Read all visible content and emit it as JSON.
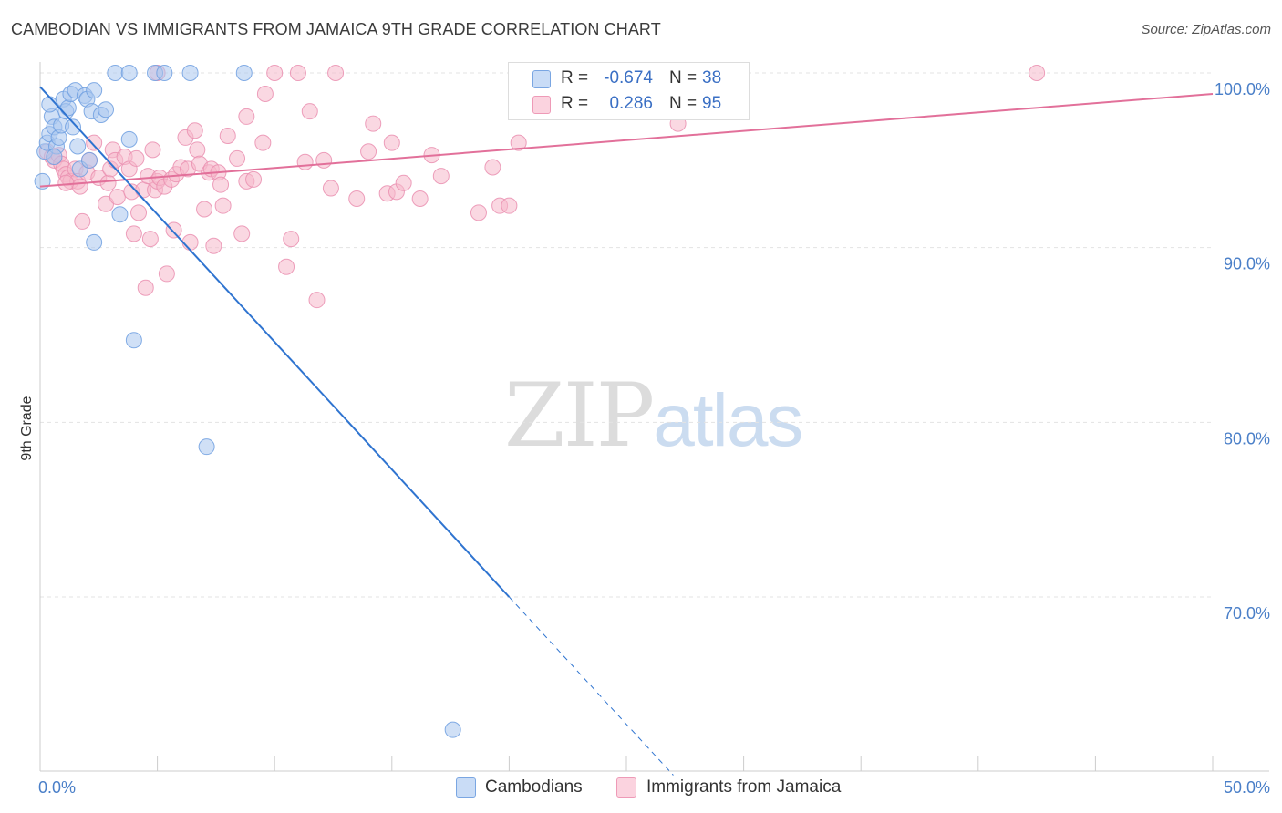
{
  "title": "CAMBODIAN VS IMMIGRANTS FROM JAMAICA 9TH GRADE CORRELATION CHART",
  "source": "Source: ZipAtlas.com",
  "watermark": {
    "zip": "ZIP",
    "atlas": "atlas"
  },
  "legend": {
    "rows": [
      {
        "r_label": "R =",
        "r_value": "-0.674",
        "n_label": "N =",
        "n_value": "38",
        "color": "#a9c7ef"
      },
      {
        "r_label": "R =",
        "r_value": "0.286",
        "n_label": "N =",
        "n_value": "95",
        "color": "#f6b8cb"
      }
    ]
  },
  "bottom_legend": [
    {
      "label": "Cambodians",
      "color": "#a9c7ef"
    },
    {
      "label": "Immigrants from Jamaica",
      "color": "#f6b8cb"
    }
  ],
  "chart_data": {
    "type": "scatter",
    "title": "CAMBODIAN VS IMMIGRANTS FROM JAMAICA 9TH GRADE CORRELATION CHART",
    "xlabel": "",
    "ylabel": "9th Grade",
    "xlim": [
      0,
      50
    ],
    "ylim": [
      60.5,
      101
    ],
    "x_tick_labels": [
      {
        "value": 0,
        "label": "0.0%"
      },
      {
        "value": 50,
        "label": "50.0%"
      }
    ],
    "y_tick_labels": [
      {
        "value": 100,
        "label": "100.0%"
      },
      {
        "value": 90,
        "label": "90.0%"
      },
      {
        "value": 80,
        "label": "80.0%"
      },
      {
        "value": 70,
        "label": "70.0%"
      }
    ],
    "grid": true,
    "legend_position": "top-center",
    "series": [
      {
        "name": "Cambodians",
        "color": "#6f9fe0",
        "fill": "#a9c7ef",
        "trend": {
          "x0": 0,
          "y0": 99.2,
          "x1": 20,
          "y1": 70.0,
          "dash_to_x": 27,
          "dash_to_y": 59.8,
          "color": "#2f74d0"
        },
        "points": [
          [
            0.1,
            93.8
          ],
          [
            0.2,
            95.5
          ],
          [
            0.3,
            96.0
          ],
          [
            0.4,
            96.5
          ],
          [
            0.5,
            97.5
          ],
          [
            0.6,
            96.9
          ],
          [
            0.7,
            95.8
          ],
          [
            0.8,
            96.3
          ],
          [
            0.9,
            97.0
          ],
          [
            1.0,
            98.5
          ],
          [
            1.1,
            97.8
          ],
          [
            1.2,
            98.0
          ],
          [
            1.3,
            98.8
          ],
          [
            1.5,
            99.0
          ],
          [
            1.6,
            95.8
          ],
          [
            1.7,
            94.5
          ],
          [
            1.9,
            98.7
          ],
          [
            2.0,
            98.5
          ],
          [
            2.1,
            95.0
          ],
          [
            2.2,
            97.8
          ],
          [
            2.3,
            90.3
          ],
          [
            2.3,
            99.0
          ],
          [
            2.6,
            97.6
          ],
          [
            2.8,
            97.9
          ],
          [
            3.2,
            100
          ],
          [
            3.4,
            91.9
          ],
          [
            3.8,
            96.2
          ],
          [
            3.8,
            100
          ],
          [
            4.0,
            84.7
          ],
          [
            4.9,
            100
          ],
          [
            5.3,
            100
          ],
          [
            6.4,
            100
          ],
          [
            7.1,
            78.6
          ],
          [
            8.7,
            100
          ],
          [
            17.6,
            62.4
          ],
          [
            0.4,
            98.2
          ],
          [
            1.4,
            96.9
          ],
          [
            0.6,
            95.2
          ]
        ]
      },
      {
        "name": "Immigrants from Jamaica",
        "color": "#ea8fb0",
        "fill": "#f6b8cb",
        "trend": {
          "x0": 0,
          "y0": 93.5,
          "x1": 50,
          "y1": 98.8,
          "color": "#e2709a"
        },
        "points": [
          [
            0.3,
            95.5
          ],
          [
            0.5,
            95.2
          ],
          [
            0.6,
            95.0
          ],
          [
            0.8,
            95.3
          ],
          [
            0.9,
            94.8
          ],
          [
            1.0,
            94.5
          ],
          [
            1.1,
            94.2
          ],
          [
            1.2,
            94.0
          ],
          [
            1.3,
            93.8
          ],
          [
            1.5,
            94.5
          ],
          [
            1.6,
            93.8
          ],
          [
            1.7,
            93.5
          ],
          [
            1.8,
            91.5
          ],
          [
            2.0,
            94.3
          ],
          [
            2.1,
            95.0
          ],
          [
            2.3,
            96.0
          ],
          [
            2.5,
            94.0
          ],
          [
            2.8,
            92.5
          ],
          [
            2.9,
            93.7
          ],
          [
            3.0,
            94.5
          ],
          [
            3.1,
            95.6
          ],
          [
            3.2,
            95.0
          ],
          [
            3.3,
            92.9
          ],
          [
            3.6,
            95.2
          ],
          [
            3.8,
            94.5
          ],
          [
            3.9,
            93.2
          ],
          [
            4.0,
            90.8
          ],
          [
            4.1,
            95.1
          ],
          [
            4.2,
            92.0
          ],
          [
            4.4,
            93.3
          ],
          [
            4.5,
            87.7
          ],
          [
            4.6,
            94.1
          ],
          [
            4.7,
            90.5
          ],
          [
            4.8,
            95.6
          ],
          [
            4.9,
            93.3
          ],
          [
            5.0,
            93.8
          ],
          [
            5.1,
            94.0
          ],
          [
            5.3,
            93.5
          ],
          [
            5.4,
            88.5
          ],
          [
            5.6,
            93.9
          ],
          [
            5.7,
            91.0
          ],
          [
            5.8,
            94.2
          ],
          [
            6.0,
            94.6
          ],
          [
            6.2,
            96.3
          ],
          [
            6.3,
            94.5
          ],
          [
            6.4,
            90.3
          ],
          [
            6.6,
            96.7
          ],
          [
            6.7,
            95.6
          ],
          [
            6.8,
            94.8
          ],
          [
            7.0,
            92.2
          ],
          [
            7.2,
            94.3
          ],
          [
            7.3,
            94.5
          ],
          [
            7.4,
            90.1
          ],
          [
            7.6,
            94.3
          ],
          [
            7.7,
            93.6
          ],
          [
            7.8,
            92.4
          ],
          [
            8.0,
            96.4
          ],
          [
            8.4,
            95.1
          ],
          [
            8.6,
            90.8
          ],
          [
            8.8,
            93.8
          ],
          [
            8.8,
            97.5
          ],
          [
            9.1,
            93.9
          ],
          [
            9.5,
            96.0
          ],
          [
            9.6,
            98.8
          ],
          [
            10.0,
            100
          ],
          [
            10.5,
            88.9
          ],
          [
            10.7,
            90.5
          ],
          [
            11.0,
            100
          ],
          [
            11.3,
            94.9
          ],
          [
            11.5,
            97.8
          ],
          [
            11.8,
            87.0
          ],
          [
            12.1,
            95.0
          ],
          [
            12.4,
            93.4
          ],
          [
            12.6,
            100
          ],
          [
            13.5,
            92.8
          ],
          [
            14.0,
            95.5
          ],
          [
            14.2,
            97.1
          ],
          [
            14.8,
            93.1
          ],
          [
            15.0,
            96.0
          ],
          [
            15.2,
            93.2
          ],
          [
            15.5,
            93.7
          ],
          [
            16.2,
            92.8
          ],
          [
            16.7,
            95.3
          ],
          [
            17.1,
            94.1
          ],
          [
            18.7,
            92.0
          ],
          [
            19.3,
            94.6
          ],
          [
            19.6,
            92.4
          ],
          [
            20.0,
            92.4
          ],
          [
            20.4,
            96.0
          ],
          [
            21.7,
            100
          ],
          [
            27.2,
            97.1
          ],
          [
            28.0,
            100
          ],
          [
            42.5,
            100
          ],
          [
            5.0,
            100
          ],
          [
            1.1,
            93.7
          ]
        ]
      }
    ]
  }
}
